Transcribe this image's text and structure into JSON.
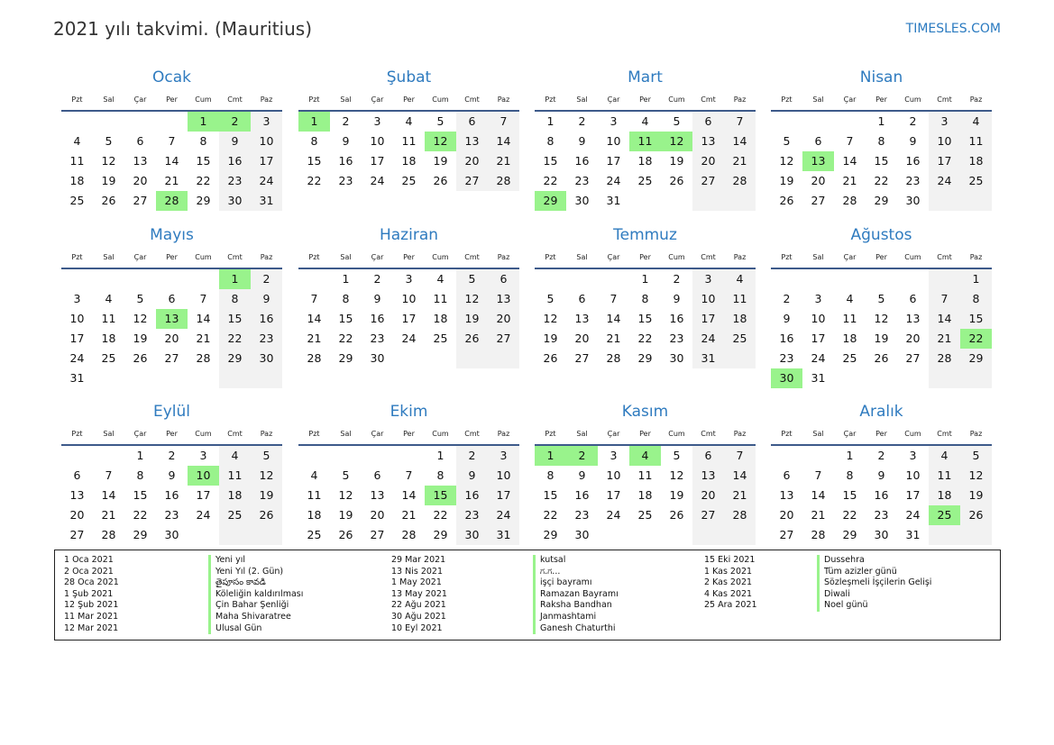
{
  "header": {
    "title": "2021 yılı takvimi. (Mauritius)",
    "brand": "TIMESLES.COM"
  },
  "weekdays": [
    "Pzt",
    "Sal",
    "Çar",
    "Per",
    "Cum",
    "Cmt",
    "Paz"
  ],
  "colors": {
    "holiday": "#99f38c",
    "weekend": "#f2f2f2",
    "month_title": "#2f7bbf",
    "rule": "#3d5a8a"
  },
  "months": [
    {
      "name": "Ocak",
      "first_weekday": "Cum",
      "days": 31,
      "holidays": [
        1,
        2,
        28
      ]
    },
    {
      "name": "Şubat",
      "first_weekday": "Pzt",
      "days": 28,
      "holidays": [
        1,
        12
      ]
    },
    {
      "name": "Mart",
      "first_weekday": "Pzt",
      "days": 31,
      "holidays": [
        11,
        12,
        29
      ]
    },
    {
      "name": "Nisan",
      "first_weekday": "Per",
      "days": 30,
      "holidays": [
        13
      ]
    },
    {
      "name": "Mayıs",
      "first_weekday": "Cmt",
      "days": 31,
      "holidays": [
        1,
        13
      ]
    },
    {
      "name": "Haziran",
      "first_weekday": "Sal",
      "days": 30,
      "holidays": []
    },
    {
      "name": "Temmuz",
      "first_weekday": "Per",
      "days": 31,
      "holidays": []
    },
    {
      "name": "Ağustos",
      "first_weekday": "Paz",
      "days": 31,
      "holidays": [
        22,
        30
      ]
    },
    {
      "name": "Eylül",
      "first_weekday": "Çar",
      "days": 30,
      "holidays": [
        10
      ]
    },
    {
      "name": "Ekim",
      "first_weekday": "Cum",
      "days": 31,
      "holidays": [
        15
      ]
    },
    {
      "name": "Kasım",
      "first_weekday": "Pzt",
      "days": 30,
      "holidays": [
        1,
        2,
        4
      ]
    },
    {
      "name": "Aralık",
      "first_weekday": "Çar",
      "days": 31,
      "holidays": [
        25
      ]
    }
  ],
  "holidays": [
    {
      "date": "1 Oca 2021",
      "name": "Yeni yıl"
    },
    {
      "date": "2 Oca 2021",
      "name": "Yeni Yıl (2. Gün)"
    },
    {
      "date": "28 Oca 2021",
      "name": "తైపూసం కావడి"
    },
    {
      "date": "1 Şub 2021",
      "name": "Köleliğin kaldırılması"
    },
    {
      "date": "12 Şub 2021",
      "name": "Çin Bahar Şenliği"
    },
    {
      "date": "11 Mar 2021",
      "name": "Maha Shivaratree"
    },
    {
      "date": "12 Mar 2021",
      "name": "Ulusal Gün"
    },
    {
      "date": "29 Mar 2021",
      "name": "kutsal"
    },
    {
      "date": "13 Nis 2021",
      "name": "ಗ.ಗ..."
    },
    {
      "date": "1 May 2021",
      "name": "işçi bayramı"
    },
    {
      "date": "13 May 2021",
      "name": "Ramazan Bayramı"
    },
    {
      "date": "22 Ağu 2021",
      "name": "Raksha Bandhan"
    },
    {
      "date": "30 Ağu 2021",
      "name": "Janmashtami"
    },
    {
      "date": "10 Eyl 2021",
      "name": "Ganesh Chaturthi"
    },
    {
      "date": "15 Eki 2021",
      "name": "Dussehra"
    },
    {
      "date": "1 Kas 2021",
      "name": "Tüm azizler günü"
    },
    {
      "date": "2 Kas 2021",
      "name": "Sözleşmeli İşçilerin Gelişi"
    },
    {
      "date": "4 Kas 2021",
      "name": "Diwali"
    },
    {
      "date": "25 Ara 2021",
      "name": "Noel günü"
    }
  ]
}
